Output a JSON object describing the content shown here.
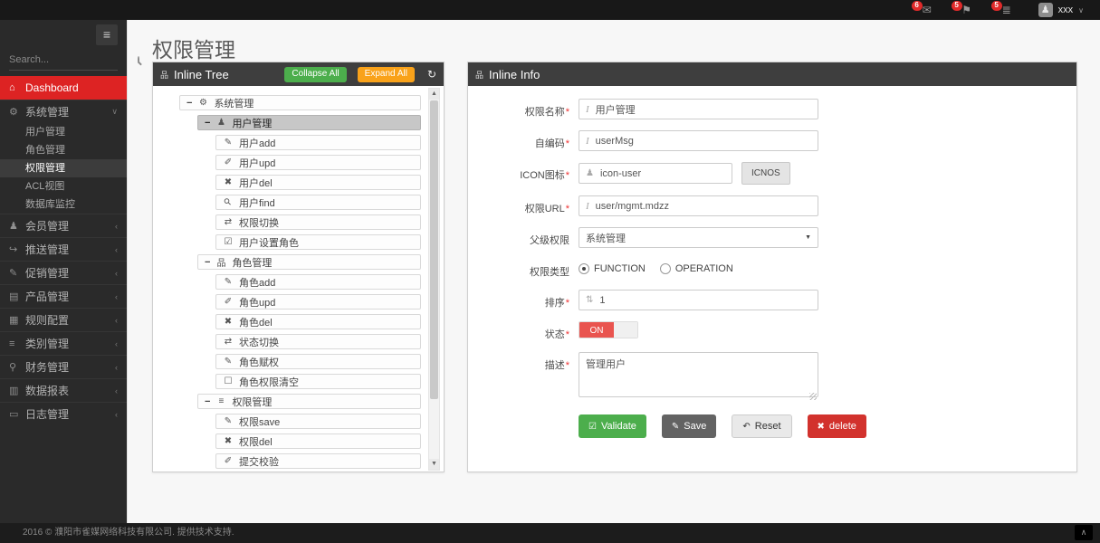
{
  "topbar": {
    "notifications": [
      {
        "icon": "envelope-icon",
        "count": "6"
      },
      {
        "icon": "flag-icon",
        "count": "5"
      },
      {
        "icon": "tasks-icon",
        "count": "5"
      }
    ],
    "user": {
      "name": "xxx",
      "avatar_icon": "user-icon",
      "chevron": "chevron-down-icon"
    }
  },
  "sidebar": {
    "hamburger_icon": "hamburger-icon",
    "search": {
      "placeholder": "Search...",
      "icon": "search-icon"
    },
    "menu_top": [
      {
        "label": "Dashboard",
        "icon": "home-icon",
        "active": true
      },
      {
        "label": "系统管理",
        "icon": "gear-icon",
        "chevron": "chevron-down-icon",
        "expanded": true
      }
    ],
    "submenu": [
      {
        "label": "用户管理"
      },
      {
        "label": "角色管理"
      },
      {
        "label": "权限管理",
        "active": true
      },
      {
        "label": "ACL视图"
      },
      {
        "label": "数据库监控"
      }
    ],
    "menu_items": [
      {
        "label": "会员管理",
        "icon": "user-icon",
        "chevron": "chevron-left-icon"
      },
      {
        "label": "推送管理",
        "icon": "share-icon",
        "chevron": "chevron-left-icon"
      },
      {
        "label": "促销管理",
        "icon": "promo-icon",
        "chevron": "chevron-left-icon"
      },
      {
        "label": "产品管理",
        "icon": "product-icon",
        "chevron": "chevron-left-icon"
      },
      {
        "label": "规则配置",
        "icon": "rules-icon",
        "chevron": "chevron-left-icon"
      },
      {
        "label": "类别管理",
        "icon": "category-icon",
        "chevron": "chevron-left-icon"
      },
      {
        "label": "财务管理",
        "icon": "finance-icon",
        "chevron": "chevron-left-icon"
      },
      {
        "label": "数据报表",
        "icon": "report-icon",
        "chevron": "chevron-left-icon"
      },
      {
        "label": "日志管理",
        "icon": "log-icon",
        "chevron": "chevron-left-icon"
      }
    ]
  },
  "page": {
    "title": "权限管理"
  },
  "tree_panel": {
    "icon": "sitemap-icon",
    "title": "Inline Tree",
    "collapse_all_label": "Collapse All",
    "expand_all_label": "Expand All",
    "refresh_icon": "refresh-icon",
    "nodes": [
      {
        "level": 0,
        "branch": true,
        "icon": "gears-icon",
        "label": "系统管理"
      },
      {
        "level": 1,
        "branch": true,
        "icon": "user-icon",
        "label": "用户管理",
        "selected": true
      },
      {
        "level": 2,
        "branch": false,
        "icon": "pencil-icon",
        "label": "用户add"
      },
      {
        "level": 2,
        "branch": false,
        "icon": "edit-icon",
        "label": "用户upd"
      },
      {
        "level": 2,
        "branch": false,
        "icon": "x-icon",
        "label": "用户del"
      },
      {
        "level": 2,
        "branch": false,
        "icon": "search-icon",
        "label": "用户find"
      },
      {
        "level": 2,
        "branch": false,
        "icon": "switch-icon",
        "label": "权限切换"
      },
      {
        "level": 2,
        "branch": false,
        "icon": "check-square-icon",
        "label": "用户设置角色"
      },
      {
        "level": 1,
        "branch": true,
        "icon": "sitemap-icon",
        "label": "角色管理"
      },
      {
        "level": 2,
        "branch": false,
        "icon": "pencil-icon",
        "label": "角色add"
      },
      {
        "level": 2,
        "branch": false,
        "icon": "edit-icon",
        "label": "角色upd"
      },
      {
        "level": 2,
        "branch": false,
        "icon": "x-icon",
        "label": "角色del"
      },
      {
        "level": 2,
        "branch": false,
        "icon": "switch-icon",
        "label": "状态切换"
      },
      {
        "level": 2,
        "branch": false,
        "icon": "pencil-icon",
        "label": "角色赋权"
      },
      {
        "level": 2,
        "branch": false,
        "icon": "square-icon",
        "label": "角色权限清空"
      },
      {
        "level": 1,
        "branch": true,
        "icon": "list-icon",
        "label": "权限管理"
      },
      {
        "level": 2,
        "branch": false,
        "icon": "pencil-icon",
        "label": "权限save"
      },
      {
        "level": 2,
        "branch": false,
        "icon": "x-icon",
        "label": "权限del"
      },
      {
        "level": 2,
        "branch": false,
        "icon": "edit-icon",
        "label": "提交校验"
      }
    ]
  },
  "info_panel": {
    "icon": "sitemap-icon",
    "title": "Inline Info",
    "fields": {
      "name": {
        "label": "权限名称",
        "req": "*",
        "value": "用户管理",
        "prefix_icon": "italic-icon"
      },
      "code": {
        "label": "自编码",
        "req": "*",
        "value": "userMsg",
        "prefix_icon": "italic-icon"
      },
      "icon": {
        "label": "ICON图标",
        "req": "*",
        "value": "icon-user",
        "prefix_icon": "user-icon",
        "button_label": "ICNOS"
      },
      "url": {
        "label": "权限URL",
        "req": "*",
        "value": "user/mgmt.mdzz",
        "prefix_icon": "italic-icon"
      },
      "parent": {
        "label": "父级权限",
        "value": "系统管理",
        "chevron": "select-arrow-icon"
      },
      "type": {
        "label": "权限类型",
        "options": [
          "FUNCTION",
          "OPERATION"
        ],
        "selected": "FUNCTION"
      },
      "sort": {
        "label": "排序",
        "req": "*",
        "value": "1",
        "prefix_icon": "spinner-icon"
      },
      "status": {
        "label": "状态",
        "req": "*",
        "value": "ON"
      },
      "desc": {
        "label": "描述",
        "req": "*",
        "value": "管理用户"
      }
    },
    "buttons": {
      "validate": {
        "label": "Validate",
        "icon": "check-square-icon"
      },
      "save": {
        "label": "Save",
        "icon": "pencil-icon"
      },
      "reset": {
        "label": "Reset",
        "icon": "undo-icon"
      },
      "delete": {
        "label": "delete",
        "icon": "x-icon"
      }
    }
  },
  "footer": {
    "text": "2016 © 濮阳市雀媒网络科技有限公司. 提供技术支持.",
    "totop_icon": "chevron-up-icon"
  }
}
